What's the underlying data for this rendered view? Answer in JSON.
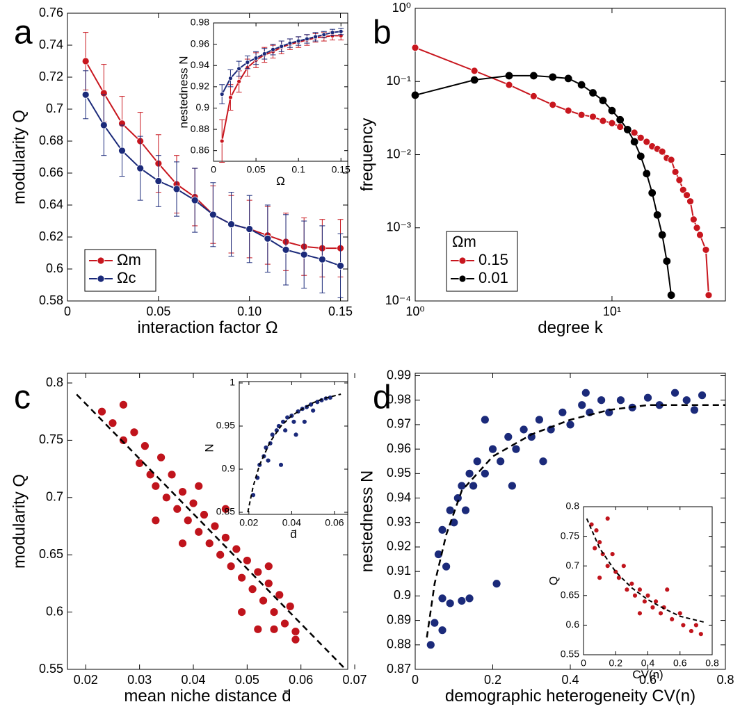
{
  "chart_data": [
    {
      "type": "line",
      "panel": "a",
      "xlabel": "interaction factor Ω",
      "ylabel": "modularity Q",
      "x": [
        0.01,
        0.02,
        0.03,
        0.04,
        0.05,
        0.06,
        0.07,
        0.08,
        0.09,
        0.1,
        0.11,
        0.12,
        0.13,
        0.14,
        0.15
      ],
      "series": [
        {
          "name": "Ωm",
          "color": "#c8161e",
          "values": [
            0.73,
            0.71,
            0.691,
            0.68,
            0.666,
            0.653,
            0.645,
            0.634,
            0.628,
            0.625,
            0.621,
            0.617,
            0.614,
            0.613,
            0.613
          ],
          "errors": [
            0.018,
            0.018,
            0.017,
            0.018,
            0.018,
            0.018,
            0.018,
            0.018,
            0.018,
            0.018,
            0.018,
            0.018,
            0.018,
            0.018,
            0.018
          ]
        },
        {
          "name": "Ωc",
          "color": "#1b2a7a",
          "values": [
            0.709,
            0.69,
            0.674,
            0.663,
            0.655,
            0.65,
            0.643,
            0.634,
            0.628,
            0.625,
            0.619,
            0.612,
            0.609,
            0.606,
            0.602
          ],
          "errors": [
            0.015,
            0.019,
            0.016,
            0.02,
            0.016,
            0.017,
            0.02,
            0.02,
            0.02,
            0.021,
            0.021,
            0.022,
            0.021,
            0.021,
            0.02
          ]
        }
      ],
      "xlim": [
        0,
        0.154
      ],
      "xticks": [
        0,
        0.05,
        {
          "value": 0.1,
          "label": "0.10"
        },
        0.15
      ],
      "ylim": [
        0.58,
        0.76
      ],
      "yticks": [
        0.58,
        0.6,
        0.62,
        0.64,
        0.66,
        0.68,
        0.7,
        0.72,
        0.74,
        0.76
      ],
      "legend": "lower left"
    },
    {
      "type": "line",
      "xlabel": "Ω",
      "ylabel": "nestedness N",
      "x": [
        0.01,
        0.02,
        0.03,
        0.04,
        0.05,
        0.06,
        0.07,
        0.08,
        0.09,
        0.1,
        0.11,
        0.12,
        0.13,
        0.14,
        0.15
      ],
      "series": [
        {
          "color": "#c8161e",
          "values": [
            0.869,
            0.91,
            0.925,
            0.938,
            0.945,
            0.95,
            0.953,
            0.957,
            0.96,
            0.962,
            0.964,
            0.966,
            0.967,
            0.968,
            0.968
          ],
          "errors": [
            0.02,
            0.012,
            0.01,
            0.008,
            0.007,
            0.007,
            0.006,
            0.006,
            0.005,
            0.005,
            0.005,
            0.004,
            0.004,
            0.004,
            0.004
          ]
        },
        {
          "color": "#1b2a7a",
          "values": [
            0.913,
            0.928,
            0.937,
            0.943,
            0.947,
            0.951,
            0.955,
            0.958,
            0.961,
            0.963,
            0.965,
            0.967,
            0.969,
            0.971,
            0.972
          ],
          "errors": [
            0.009,
            0.008,
            0.007,
            0.006,
            0.006,
            0.005,
            0.005,
            0.005,
            0.004,
            0.004,
            0.004,
            0.004,
            0.003,
            0.003,
            0.003
          ]
        }
      ],
      "xlim": [
        0,
        0.158
      ],
      "xticks": [
        0,
        0.05,
        0.1,
        0.15
      ],
      "ylim": [
        0.85,
        0.98
      ],
      "yticks": [
        0.86,
        0.88,
        0.9,
        0.92,
        0.94,
        0.96,
        0.98
      ]
    },
    {
      "type": "line",
      "panel": "b",
      "xlabel": "degree k",
      "ylabel": "frequency",
      "xlog": true,
      "ylog": true,
      "legend_title": "Ωm",
      "legend": "lower left",
      "series": [
        {
          "name": "0.15",
          "color": "#c8161e",
          "x": [
            1,
            2,
            3,
            4,
            5,
            6,
            7,
            8,
            9,
            10,
            11,
            12,
            13,
            14,
            15,
            16,
            17,
            18,
            19,
            20,
            21,
            22,
            23,
            24,
            25,
            26,
            27,
            28,
            30,
            31
          ],
          "values": [
            0.29,
            0.14,
            0.09,
            0.063,
            0.048,
            0.04,
            0.035,
            0.033,
            0.029,
            0.027,
            0.024,
            0.022,
            0.02,
            0.017,
            0.015,
            0.013,
            0.012,
            0.011,
            0.009,
            0.0085,
            0.0058,
            0.0045,
            0.0033,
            0.0028,
            0.0023,
            0.0013,
            0.001,
            0.0008,
            0.0005,
            0.00012
          ]
        },
        {
          "name": "0.01",
          "color": "#000000",
          "x": [
            1,
            2,
            3,
            4,
            5,
            6,
            7,
            8,
            9,
            10,
            11,
            12,
            13,
            14,
            15,
            16,
            17,
            18,
            19,
            20
          ],
          "values": [
            0.065,
            0.105,
            0.12,
            0.12,
            0.115,
            0.11,
            0.09,
            0.07,
            0.055,
            0.04,
            0.03,
            0.022,
            0.015,
            0.0095,
            0.0055,
            0.003,
            0.0015,
            0.0008,
            0.00035,
            0.00012
          ]
        }
      ],
      "xlim": [
        1,
        37.7
      ],
      "xticks": [
        {
          "value": 1,
          "label": "10⁰"
        },
        {
          "value": 10,
          "label": "10¹"
        }
      ],
      "ylim": [
        0.0001,
        1
      ],
      "yticks": [
        {
          "value": 0.0001,
          "label": "10⁻⁴"
        },
        {
          "value": 0.001,
          "label": "10⁻³"
        },
        {
          "value": 0.01,
          "label": "10⁻²"
        },
        {
          "value": 0.1,
          "label": "10⁻¹"
        },
        {
          "value": 1,
          "label": "10⁰"
        }
      ]
    },
    {
      "type": "scatter",
      "panel": "c",
      "xlabel": "mean niche distance d̄",
      "ylabel": "modularity Q",
      "series": [
        {
          "color": "#c0141c",
          "x": [
            0.023,
            0.027,
            0.025,
            0.027,
            0.029,
            0.03,
            0.031,
            0.032,
            0.033,
            0.034,
            0.035,
            0.036,
            0.037,
            0.038,
            0.039,
            0.04,
            0.041,
            0.042,
            0.043,
            0.044,
            0.045,
            0.046,
            0.047,
            0.048,
            0.049,
            0.05,
            0.051,
            0.052,
            0.053,
            0.054,
            0.055,
            0.056,
            0.057,
            0.058,
            0.052,
            0.055,
            0.059,
            0.059,
            0.033,
            0.038,
            0.046,
            0.049,
            0.054,
            0.041
          ],
          "values": [
            0.775,
            0.781,
            0.765,
            0.75,
            0.757,
            0.73,
            0.745,
            0.72,
            0.71,
            0.735,
            0.7,
            0.72,
            0.69,
            0.705,
            0.68,
            0.695,
            0.67,
            0.685,
            0.66,
            0.675,
            0.65,
            0.665,
            0.64,
            0.655,
            0.63,
            0.645,
            0.62,
            0.635,
            0.61,
            0.625,
            0.6,
            0.615,
            0.59,
            0.605,
            0.585,
            0.585,
            0.583,
            0.576,
            0.68,
            0.66,
            0.69,
            0.6,
            0.64,
            0.71
          ]
        }
      ],
      "fit": {
        "x": [
          0.0183,
          0.0683
        ],
        "values": [
          0.79,
          0.55
        ]
      },
      "xlim": [
        0.0166,
        0.0687
      ],
      "xticks": [
        0.02,
        0.03,
        0.04,
        0.05,
        0.06,
        0.07
      ],
      "ylim": [
        0.55,
        0.8085
      ],
      "yticks": [
        0.55,
        0.6,
        0.65,
        0.7,
        0.75,
        0.8
      ]
    },
    {
      "type": "scatter",
      "xlabel": "d̄",
      "ylabel": "N",
      "series": [
        {
          "color": "#1b2a7a",
          "x": [
            0.022,
            0.024,
            0.025,
            0.027,
            0.028,
            0.03,
            0.031,
            0.033,
            0.034,
            0.036,
            0.037,
            0.038,
            0.04,
            0.041,
            0.043,
            0.045,
            0.047,
            0.049,
            0.05,
            0.052,
            0.054,
            0.056,
            0.058,
            0.035,
            0.029,
            0.042,
            0.046
          ],
          "values": [
            0.87,
            0.89,
            0.905,
            0.915,
            0.925,
            0.93,
            0.94,
            0.945,
            0.95,
            0.955,
            0.945,
            0.96,
            0.962,
            0.955,
            0.967,
            0.97,
            0.972,
            0.975,
            0.968,
            0.978,
            0.98,
            0.982,
            0.983,
            0.905,
            0.91,
            0.94,
            0.955
          ]
        }
      ],
      "fit": {
        "x": [
          0.0195,
          0.022,
          0.025,
          0.03,
          0.035,
          0.04,
          0.045,
          0.05,
          0.055,
          0.063
        ],
        "values": [
          0.85,
          0.88,
          0.905,
          0.932,
          0.95,
          0.962,
          0.97,
          0.977,
          0.982,
          0.987
        ]
      },
      "xlim": [
        0.0155,
        0.0662
      ],
      "xticks": [
        0.02,
        0.04,
        0.06
      ],
      "ylim": [
        0.8476,
        1.0016
      ],
      "yticks": [
        0.85,
        0.9,
        0.95,
        1
      ]
    },
    {
      "type": "scatter",
      "panel": "d",
      "xlabel": "demographic heterogeneity CV(n)",
      "ylabel": "nestedness N",
      "series": [
        {
          "color": "#1b2a7a",
          "x": [
            0.04,
            0.05,
            0.07,
            0.07,
            0.09,
            0.12,
            0.14,
            0.21,
            0.06,
            0.08,
            0.07,
            0.09,
            0.1,
            0.11,
            0.12,
            0.13,
            0.14,
            0.15,
            0.16,
            0.18,
            0.2,
            0.22,
            0.24,
            0.26,
            0.28,
            0.3,
            0.32,
            0.35,
            0.38,
            0.4,
            0.43,
            0.45,
            0.48,
            0.5,
            0.53,
            0.56,
            0.6,
            0.63,
            0.67,
            0.7,
            0.74,
            0.72,
            0.25,
            0.33,
            0.44,
            0.18
          ],
          "values": [
            0.88,
            0.889,
            0.886,
            0.899,
            0.897,
            0.898,
            0.899,
            0.905,
            0.917,
            0.912,
            0.927,
            0.935,
            0.93,
            0.94,
            0.945,
            0.935,
            0.95,
            0.945,
            0.955,
            0.95,
            0.96,
            0.955,
            0.965,
            0.96,
            0.968,
            0.965,
            0.972,
            0.968,
            0.975,
            0.97,
            0.978,
            0.975,
            0.98,
            0.975,
            0.98,
            0.977,
            0.981,
            0.978,
            0.983,
            0.98,
            0.982,
            0.976,
            0.945,
            0.955,
            0.983,
            0.972
          ]
        }
      ],
      "fit": {
        "x": [
          0.03,
          0.05,
          0.08,
          0.12,
          0.2,
          0.3,
          0.4,
          0.5,
          0.6,
          0.8
        ],
        "values": [
          0.883,
          0.905,
          0.925,
          0.943,
          0.957,
          0.966,
          0.972,
          0.976,
          0.978,
          0.978
        ]
      },
      "xlim": [
        0,
        0.8
      ],
      "xticks": [
        0,
        0.2,
        0.4,
        0.6,
        0.8
      ],
      "ylim": [
        0.87,
        0.991
      ],
      "yticks": [
        0.87,
        0.88,
        0.89,
        0.9,
        0.91,
        0.92,
        0.93,
        0.94,
        0.95,
        0.96,
        0.97,
        0.98,
        0.99
      ]
    },
    {
      "type": "scatter",
      "xlabel": "CV(n)",
      "ylabel": "Q",
      "series": [
        {
          "color": "#c0141c",
          "x": [
            0.05,
            0.08,
            0.1,
            0.12,
            0.15,
            0.15,
            0.18,
            0.2,
            0.22,
            0.25,
            0.27,
            0.3,
            0.32,
            0.35,
            0.38,
            0.4,
            0.43,
            0.45,
            0.48,
            0.5,
            0.55,
            0.6,
            0.62,
            0.67,
            0.7,
            0.73,
            0.07,
            0.35,
            0.1,
            0.52
          ],
          "values": [
            0.77,
            0.76,
            0.74,
            0.72,
            0.78,
            0.7,
            0.72,
            0.69,
            0.68,
            0.7,
            0.66,
            0.67,
            0.65,
            0.66,
            0.64,
            0.65,
            0.63,
            0.64,
            0.62,
            0.63,
            0.61,
            0.62,
            0.6,
            0.59,
            0.6,
            0.585,
            0.73,
            0.62,
            0.68,
            0.66
          ]
        }
      ],
      "fit": {
        "x": [
          0.02,
          0.1,
          0.2,
          0.3,
          0.4,
          0.5,
          0.6,
          0.75
        ],
        "values": [
          0.78,
          0.73,
          0.69,
          0.663,
          0.643,
          0.628,
          0.615,
          0.605
        ]
      },
      "xlim": [
        0,
        0.8
      ],
      "xticks": [
        0,
        0.2,
        0.4,
        0.6,
        0.8
      ],
      "ylim": [
        0.55,
        0.8
      ],
      "yticks": [
        0.55,
        0.6,
        0.65,
        0.7,
        0.75,
        0.8
      ]
    }
  ]
}
